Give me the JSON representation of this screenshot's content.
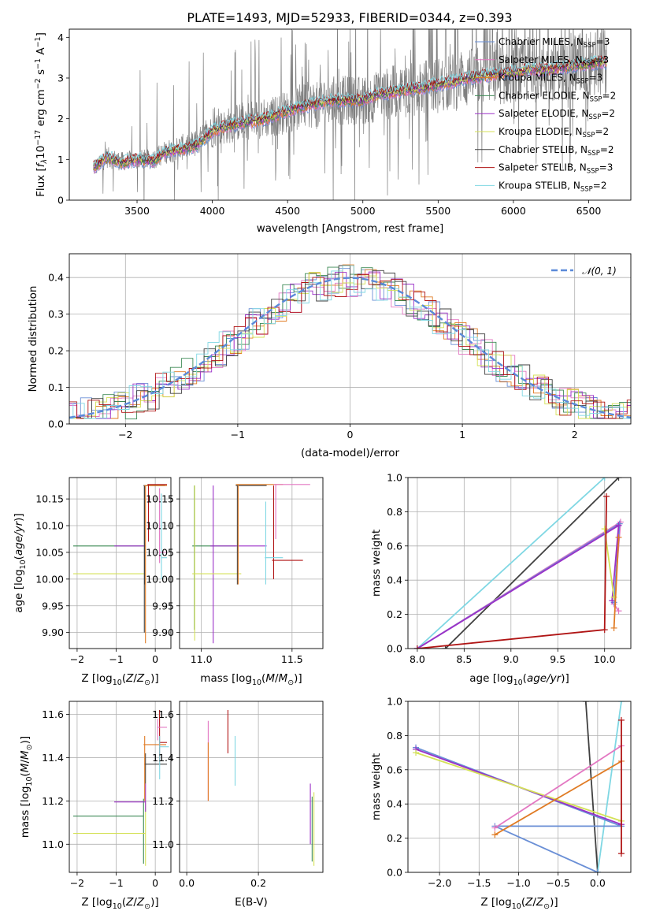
{
  "chart_data": [
    {
      "id": "spectrum",
      "type": "line",
      "title": "PLATE=1493, MJD=52933, FIBERID=0344, z=0.393",
      "xlabel": "wavelength [Angstrom, rest frame]",
      "ylabel_parts": [
        "Flux [",
        "f",
        "λ",
        "10",
        "−17",
        " erg cm",
        "−2",
        " s",
        "−1",
        " A",
        "−1",
        "]"
      ],
      "xlim": [
        3050,
        6780
      ],
      "ylim": [
        0,
        4.2
      ],
      "xticks": [
        3500,
        4000,
        4500,
        5000,
        5500,
        6000,
        6500
      ],
      "yticks": [
        0,
        1,
        2,
        3,
        4
      ],
      "grid": false,
      "legend_position": "upper right",
      "observed_spectrum": {
        "color": "#808080",
        "x_range": [
          3210,
          6620
        ],
        "continuum_anchors": [
          [
            3210,
            0.75
          ],
          [
            3300,
            1.05
          ],
          [
            3400,
            0.95
          ],
          [
            3500,
            1.0
          ],
          [
            3600,
            1.0
          ],
          [
            3700,
            1.2
          ],
          [
            3800,
            1.3
          ],
          [
            3900,
            1.4
          ],
          [
            4000,
            1.7
          ],
          [
            4200,
            1.95
          ],
          [
            4400,
            2.05
          ],
          [
            4600,
            2.3
          ],
          [
            4800,
            2.45
          ],
          [
            5000,
            2.45
          ],
          [
            5200,
            2.65
          ],
          [
            5400,
            2.75
          ],
          [
            5600,
            2.9
          ],
          [
            5800,
            3.05
          ],
          [
            6000,
            3.15
          ],
          [
            6200,
            3.2
          ],
          [
            6400,
            3.3
          ],
          [
            6620,
            3.4
          ]
        ]
      },
      "model_continuum": [
        [
          3210,
          0.8
        ],
        [
          3300,
          1.05
        ],
        [
          3400,
          0.92
        ],
        [
          3500,
          1.0
        ],
        [
          3600,
          0.95
        ],
        [
          3700,
          1.2
        ],
        [
          3800,
          1.25
        ],
        [
          3900,
          1.35
        ],
        [
          4000,
          1.7
        ],
        [
          4100,
          1.82
        ],
        [
          4200,
          1.9
        ],
        [
          4300,
          1.95
        ],
        [
          4400,
          2.05
        ],
        [
          4500,
          2.2
        ],
        [
          4600,
          2.3
        ],
        [
          4700,
          2.38
        ],
        [
          4800,
          2.45
        ],
        [
          4900,
          2.45
        ],
        [
          5000,
          2.45
        ],
        [
          5100,
          2.6
        ],
        [
          5200,
          2.65
        ],
        [
          5300,
          2.72
        ],
        [
          5400,
          2.75
        ],
        [
          5500,
          2.85
        ],
        [
          5600,
          2.9
        ],
        [
          5700,
          3.0
        ],
        [
          5800,
          3.05
        ],
        [
          5900,
          3.1
        ],
        [
          6000,
          3.15
        ],
        [
          6100,
          3.2
        ],
        [
          6200,
          3.2
        ],
        [
          6300,
          3.25
        ],
        [
          6400,
          3.3
        ],
        [
          6500,
          3.35
        ],
        [
          6620,
          3.4
        ]
      ],
      "series": [
        {
          "label_parts": [
            "Chabrier MILES, N",
            "SSP",
            "=3"
          ],
          "color": "#6a8fd6"
        },
        {
          "label_parts": [
            "Salpeter MILES, N",
            "SSP",
            "=3"
          ],
          "color": "#e377c2"
        },
        {
          "label_parts": [
            "Kroupa MILES, N",
            "SSP",
            "=3"
          ],
          "color": "#e07b24"
        },
        {
          "label_parts": [
            "Chabrier ELODIE, N",
            "SSP",
            "=2"
          ],
          "color": "#3d8a55"
        },
        {
          "label_parts": [
            "Salpeter ELODIE, N",
            "SSP",
            "=2"
          ],
          "color": "#9b30c8"
        },
        {
          "label_parts": [
            "Kroupa ELODIE, N",
            "SSP",
            "=2"
          ],
          "color": "#d4e157"
        },
        {
          "label_parts": [
            "Chabrier STELIB, N",
            "SSP",
            "=2"
          ],
          "color": "#404040"
        },
        {
          "label_parts": [
            "Salpeter STELIB, N",
            "SSP",
            "=3"
          ],
          "color": "#b01515"
        },
        {
          "label_parts": [
            "Kroupa STELIB, N",
            "SSP",
            "=2"
          ],
          "color": "#7fd7e3"
        }
      ]
    },
    {
      "id": "residuals",
      "type": "histogram",
      "xlabel": "(data-model)/error",
      "ylabel": "Normed distribution",
      "xlim": [
        -2.5,
        2.5
      ],
      "ylim": [
        0,
        0.465
      ],
      "xticks": [
        -2,
        -1,
        0,
        1,
        2
      ],
      "yticks": [
        0.0,
        0.1,
        0.2,
        0.3,
        0.4
      ],
      "grid": true,
      "bin_width": 0.1,
      "legend_position": "upper right",
      "reference_curve": {
        "label": "𝒩(0, 1)",
        "mean": 0,
        "sigma": 1,
        "color": "#5b8ad9",
        "style": "dashed"
      },
      "colors": [
        "#6a8fd6",
        "#e377c2",
        "#e07b24",
        "#3d8a55",
        "#9b30c8",
        "#d4e157",
        "#404040",
        "#b01515",
        "#7fd7e3"
      ]
    },
    {
      "id": "age-vs-Z",
      "type": "errorbar",
      "xlabel_parts": [
        "Z [log",
        "10",
        "(Z/Z",
        "⊙",
        ")]"
      ],
      "ylabel_parts": [
        "age  [log",
        "10",
        "(age/yr)]"
      ],
      "xlim": [
        -2.2,
        0.4
      ],
      "ylim": [
        9.87,
        10.19
      ],
      "xticks": [
        -2,
        -1,
        0
      ],
      "yticks": [
        9.9,
        9.95,
        10.0,
        10.05,
        10.1,
        10.15
      ],
      "grid": true,
      "points": [
        {
          "x": [
            -2.1,
            -0.3
          ],
          "y": 10.062,
          "yerr": [
            10.062,
            10.062
          ],
          "color": "#3d8a55"
        },
        {
          "x": [
            -1.05,
            -0.25
          ],
          "y": 10.062,
          "yerr": [
            10.062,
            10.062
          ],
          "color": "#9b30c8"
        },
        {
          "x": [
            -2.1,
            -0.25
          ],
          "y": 10.01,
          "yerr": [
            10.01,
            10.01
          ],
          "color": "#d4e157"
        },
        {
          "x": [
            -0.28,
            -0.28
          ],
          "y": 10.062,
          "yerr": [
            9.9,
            10.175
          ],
          "color": "#404040"
        },
        {
          "x": [
            -0.3,
            0.25
          ],
          "y": 10.175,
          "yerr": [
            9.99,
            10.175
          ],
          "color": "#404040"
        },
        {
          "x": [
            -0.28,
            0.3
          ],
          "y": 10.175,
          "yerr": [
            9.88,
            10.175
          ],
          "color": "#e07b24"
        },
        {
          "x": [
            -0.2,
            0.3
          ],
          "y": 10.177,
          "yerr": [
            10.07,
            10.177
          ],
          "color": "#b01515"
        },
        {
          "x": [
            0.15,
            0.3
          ],
          "y": 10.04,
          "yerr": [
            10.0,
            10.16
          ],
          "color": "#7fd7e3"
        },
        {
          "x": [
            0.1,
            0.3
          ],
          "y": 10.05,
          "yerr": [
            10.03,
            10.17
          ],
          "color": "#e377c2"
        }
      ]
    },
    {
      "id": "age-vs-mass",
      "type": "errorbar",
      "xlabel_parts": [
        "mass [log",
        "10",
        "(M/M",
        "⊙",
        ")]"
      ],
      "xlim": [
        10.88,
        11.67
      ],
      "ylim": [
        9.87,
        10.19
      ],
      "xticks": [
        11.0,
        11.5
      ],
      "yticks": [
        9.9,
        9.95,
        10.0,
        10.05,
        10.1,
        10.15
      ],
      "grid": true,
      "points": [
        {
          "x": [
            10.95,
            11.19
          ],
          "y": 10.062,
          "yerr": [
            9.905,
            10.175
          ],
          "color": "#3d8a55"
        },
        {
          "x": [
            11.05,
            11.36
          ],
          "y": 10.062,
          "yerr": [
            9.88,
            10.175
          ],
          "color": "#9b30c8"
        },
        {
          "x": [
            10.95,
            11.22
          ],
          "y": 10.01,
          "yerr": [
            9.885,
            10.175
          ],
          "color": "#d4e157"
        },
        {
          "x": [
            11.19,
            11.36
          ],
          "y": 10.175,
          "yerr": [
            9.99,
            10.175
          ],
          "color": "#404040"
        },
        {
          "x": [
            11.19,
            11.45
          ],
          "y": 10.177,
          "yerr": [
            9.99,
            10.177
          ],
          "color": "#e07b24"
        },
        {
          "x": [
            11.39,
            11.56
          ],
          "y": 10.035,
          "yerr": [
            10.0,
            10.175
          ],
          "color": "#b01515"
        },
        {
          "x": [
            11.35,
            11.45
          ],
          "y": 10.04,
          "yerr": [
            9.99,
            10.145
          ],
          "color": "#7fd7e3"
        },
        {
          "x": [
            11.4,
            11.6
          ],
          "y": 10.177,
          "yerr": [
            10.075,
            10.177
          ],
          "color": "#e377c2"
        }
      ]
    },
    {
      "id": "massweight-vs-age",
      "type": "line",
      "xlabel_parts": [
        "age  [log",
        "10",
        "(age/yr)]"
      ],
      "ylabel": "mass weight",
      "xlim": [
        7.9,
        10.28
      ],
      "ylim": [
        0,
        1
      ],
      "xticks": [
        8.0,
        8.5,
        9.0,
        9.5,
        10.0
      ],
      "yticks": [
        0.0,
        0.2,
        0.4,
        0.6,
        0.8,
        1.0
      ],
      "grid": true,
      "series": [
        {
          "color": "#7fd7e3",
          "points": [
            [
              8.0,
              0.0
            ],
            [
              10.0,
              1.0
            ]
          ]
        },
        {
          "color": "#404040",
          "points": [
            [
              8.3,
              0.0
            ],
            [
              10.15,
              1.0
            ]
          ]
        },
        {
          "color": "#e377c2",
          "points": [
            [
              8.0,
              0.0
            ],
            [
              10.17,
              0.74
            ],
            [
              10.1,
              0.26
            ],
            [
              10.15,
              0.22
            ]
          ]
        },
        {
          "color": "#6a8fd6",
          "points": [
            [
              8.0,
              0.0
            ],
            [
              10.16,
              0.73
            ],
            [
              10.1,
              0.27
            ]
          ]
        },
        {
          "color": "#9b30c8",
          "points": [
            [
              8.0,
              0.0
            ],
            [
              10.15,
              0.72
            ],
            [
              10.08,
              0.28
            ]
          ]
        },
        {
          "color": "#d4e157",
          "points": [
            [
              10.0,
              0.7
            ],
            [
              10.1,
              0.3
            ]
          ]
        },
        {
          "color": "#e07b24",
          "points": [
            [
              10.1,
              0.12
            ],
            [
              10.15,
              0.65
            ]
          ]
        },
        {
          "color": "#b01515",
          "points": [
            [
              8.0,
              0.0
            ],
            [
              10.0,
              0.11
            ],
            [
              10.02,
              0.89
            ]
          ]
        }
      ]
    },
    {
      "id": "mass-vs-Z",
      "type": "errorbar",
      "xlabel_parts": [
        "Z [log",
        "10",
        "(Z/Z",
        "⊙",
        ")]"
      ],
      "ylabel_parts": [
        "mass [log",
        "10",
        "(M/M",
        "⊙",
        ")]"
      ],
      "xlim": [
        -2.2,
        0.4
      ],
      "ylim": [
        10.87,
        11.66
      ],
      "xticks": [
        -2,
        -1,
        0
      ],
      "yticks": [
        11.0,
        11.2,
        11.4,
        11.6
      ],
      "grid": true,
      "points": [
        {
          "x": [
            -2.1,
            -0.3
          ],
          "y": 11.13,
          "yerr": [
            10.91,
            11.21
          ],
          "color": "#3d8a55"
        },
        {
          "x": [
            -2.1,
            -0.25
          ],
          "y": 11.05,
          "yerr": [
            10.9,
            11.2
          ],
          "color": "#d4e157"
        },
        {
          "x": [
            -1.05,
            -0.25
          ],
          "y": 11.195,
          "yerr": [
            11.15,
            11.28
          ],
          "color": "#9b30c8"
        },
        {
          "x": [
            -0.28,
            0.3
          ],
          "y": 11.37,
          "yerr": [
            11.28,
            11.42
          ],
          "color": "#404040"
        },
        {
          "x": [
            -0.3,
            0.28
          ],
          "y": 11.46,
          "yerr": [
            11.2,
            11.5
          ],
          "color": "#e07b24"
        },
        {
          "x": [
            0.1,
            0.3
          ],
          "y": 11.47,
          "yerr": [
            11.38,
            11.62
          ],
          "color": "#b01515"
        },
        {
          "x": [
            0.05,
            0.3
          ],
          "y": 11.54,
          "yerr": [
            11.48,
            11.58
          ],
          "color": "#e377c2"
        },
        {
          "x": [
            0.1,
            0.35
          ],
          "y": 11.45,
          "yerr": [
            11.3,
            11.5
          ],
          "color": "#7fd7e3"
        }
      ]
    },
    {
      "id": "mass-vs-EBV",
      "type": "errorbar",
      "xlabel": "E(B-V)",
      "xlim": [
        -0.02,
        0.38
      ],
      "ylim": [
        10.87,
        11.66
      ],
      "xticks": [
        0.0,
        0.2
      ],
      "yticks": [
        11.0,
        11.2,
        11.4,
        11.6
      ],
      "grid": true,
      "points": [
        {
          "x": 0.06,
          "yerr": [
            11.2,
            11.57
          ],
          "color": "#e377c2"
        },
        {
          "x": 0.06,
          "yerr": [
            11.2,
            11.47
          ],
          "color": "#e07b24"
        },
        {
          "x": 0.115,
          "yerr": [
            11.42,
            11.62
          ],
          "color": "#b01515"
        },
        {
          "x": 0.135,
          "yerr": [
            11.27,
            11.5
          ],
          "color": "#7fd7e3"
        },
        {
          "x": 0.345,
          "yerr": [
            11.0,
            11.28
          ],
          "color": "#9b30c8"
        },
        {
          "x": 0.355,
          "yerr": [
            10.9,
            11.24
          ],
          "color": "#d4e157"
        },
        {
          "x": 0.35,
          "yerr": [
            10.92,
            11.22
          ],
          "color": "#3d8a55"
        }
      ]
    },
    {
      "id": "massweight-vs-Z",
      "type": "line",
      "xlabel_parts": [
        "Z [log",
        "10",
        "(Z/Z",
        "⊙",
        ")]"
      ],
      "ylabel": "mass weight",
      "xlim": [
        -2.4,
        0.42
      ],
      "ylim": [
        0,
        1
      ],
      "xticks": [
        -2.0,
        -1.5,
        -1.0,
        -0.5,
        0.0
      ],
      "yticks": [
        0.0,
        0.2,
        0.4,
        0.6,
        0.8,
        1.0
      ],
      "grid": true,
      "series": [
        {
          "color": "#404040",
          "points": [
            [
              -0.15,
              1.0
            ],
            [
              0.0,
              0.0
            ]
          ]
        },
        {
          "color": "#7fd7e3",
          "points": [
            [
              0.0,
              0.0
            ],
            [
              0.3,
              1.0
            ]
          ]
        },
        {
          "color": "#6a8fd6",
          "points": [
            [
              -2.3,
              0.73
            ],
            [
              0.3,
              0.27
            ],
            [
              -1.3,
              0.27
            ],
            [
              0.0,
              0.0
            ]
          ]
        },
        {
          "color": "#9b30c8",
          "points": [
            [
              -2.3,
              0.72
            ],
            [
              0.3,
              0.28
            ]
          ]
        },
        {
          "color": "#d4e157",
          "points": [
            [
              -2.3,
              0.7
            ],
            [
              0.3,
              0.3
            ]
          ]
        },
        {
          "color": "#e377c2",
          "points": [
            [
              -1.3,
              0.26
            ],
            [
              0.3,
              0.74
            ]
          ]
        },
        {
          "color": "#e07b24",
          "points": [
            [
              -1.3,
              0.22
            ],
            [
              0.3,
              0.65
            ]
          ]
        },
        {
          "color": "#b01515",
          "points": [
            [
              0.3,
              0.11
            ],
            [
              0.3,
              0.89
            ]
          ]
        }
      ]
    }
  ]
}
